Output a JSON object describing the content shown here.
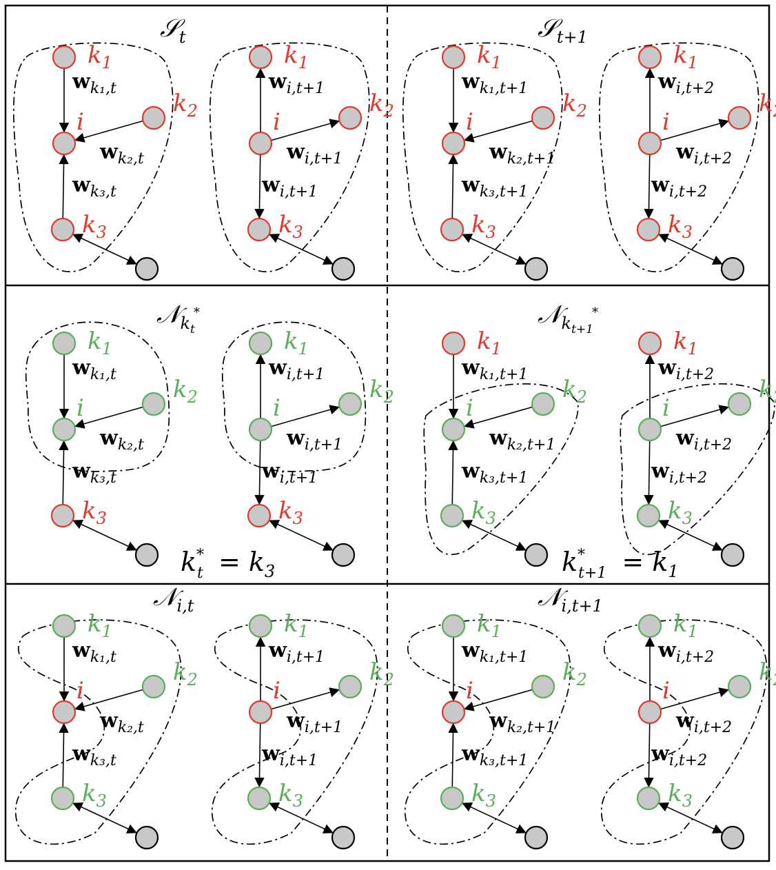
{
  "colors": {
    "active": "#e0392b",
    "inactive": "#5aae5a",
    "node_fill": "#c8c8c8",
    "line": "#000000"
  },
  "node_labels": {
    "k1": {
      "base": "k",
      "sub": "1"
    },
    "k2": {
      "base": "k",
      "sub": "2"
    },
    "k3": {
      "base": "k",
      "sub": "3"
    },
    "i": {
      "base": "i"
    }
  },
  "rows": [
    {
      "panels": [
        {
          "set_label": {
            "base": "𝒮",
            "sub": "t"
          },
          "left": {
            "w1": "k₁,t",
            "w2": "k₂,t",
            "w3": "k₃,t"
          },
          "right": {
            "w1": "i,t+1",
            "w2": "i,t+1",
            "w3": "i,t+1"
          }
        },
        {
          "set_label": {
            "base": "𝒮",
            "sub": "t+1"
          },
          "left": {
            "w1": "k₁,t+1",
            "w2": "k₂,t+1",
            "w3": "k₃,t+1"
          },
          "right": {
            "w1": "i,t+2",
            "w2": "i,t+2",
            "w3": "i,t+2"
          }
        }
      ]
    },
    {
      "panels": [
        {
          "set_label": {
            "base": "𝒩",
            "sub": "k",
            "subsub": "t",
            "sup": "*"
          },
          "left": {
            "w1": "k₁,t",
            "w2": "k₂,t",
            "w3": "k₃,t"
          },
          "right": {
            "w1": "i,t+1",
            "w2": "i,t+1",
            "w3": "i,t+1"
          },
          "equation": {
            "lhs": "k",
            "lhs_sup": "*",
            "lhs_sub": "t",
            "rhs": "= k",
            "rhs_sub": "3"
          }
        },
        {
          "set_label": {
            "base": "𝒩",
            "sub": "k",
            "subsub": "t+1",
            "sup": "*"
          },
          "left": {
            "w1": "k₁,t+1",
            "w2": "k₂,t+1",
            "w3": "k₃,t+1"
          },
          "right": {
            "w1": "i,t+2",
            "w2": "i,t+2",
            "w3": "i,t+2"
          },
          "equation": {
            "lhs": "k",
            "lhs_sup": "*",
            "lhs_sub": "t+1",
            "rhs": "= k",
            "rhs_sub": "1"
          }
        }
      ]
    },
    {
      "panels": [
        {
          "set_label": {
            "base": "𝒩",
            "sub": "i,t"
          },
          "left": {
            "w1": "k₁,t",
            "w2": "k₂,t",
            "w3": "k₃,t"
          },
          "right": {
            "w1": "i,t+1",
            "w2": "i,t+1",
            "w3": "i,t+1"
          }
        },
        {
          "set_label": {
            "base": "𝒩",
            "sub": "i,t+1"
          },
          "left": {
            "w1": "k₁,t+1",
            "w2": "k₂,t+1",
            "w3": "k₃,t+1"
          },
          "right": {
            "w1": "i,t+2",
            "w2": "i,t+2",
            "w3": "i,t+2"
          }
        }
      ]
    }
  ]
}
